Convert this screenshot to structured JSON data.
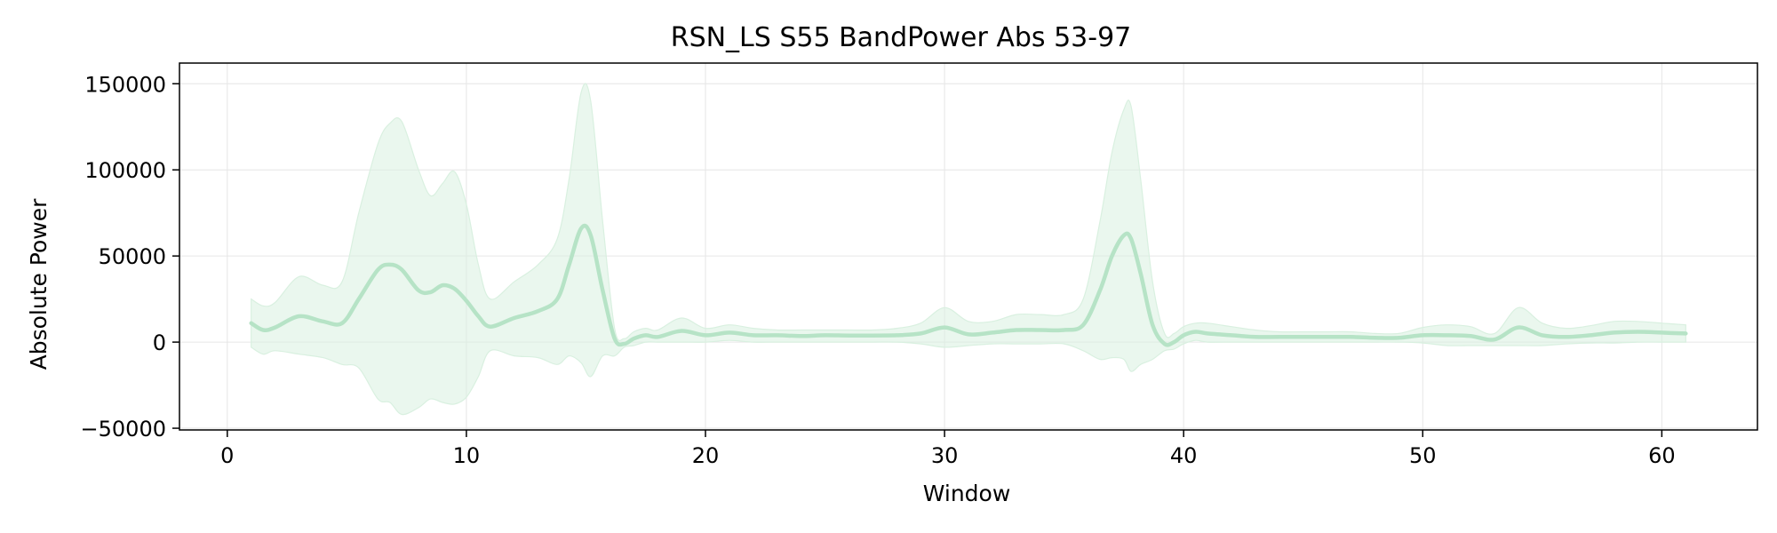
{
  "chart_data": {
    "type": "line",
    "title": "RSN_LS S55 BandPower Abs 53-97",
    "xlabel": "Window",
    "ylabel": "Absolute Power",
    "xlim": [
      -2,
      64
    ],
    "ylim": [
      -51000,
      162000
    ],
    "x_ticks": [
      0,
      10,
      20,
      30,
      40,
      50,
      60
    ],
    "x_tick_labels": [
      "0",
      "10",
      "20",
      "30",
      "40",
      "50",
      "60"
    ],
    "y_ticks": [
      -50000,
      0,
      50000,
      100000,
      150000
    ],
    "y_tick_labels": [
      "−50000",
      "0",
      "50000",
      "100000",
      "150000"
    ],
    "grid": true,
    "legend": "none",
    "colors": {
      "line": "#b6e3c6",
      "band": "#d9f0e0",
      "grid": "#e6e6e6",
      "axis": "#000000"
    },
    "series": [
      {
        "x": [
          1,
          1.5,
          2,
          3,
          4,
          4.8,
          5.5,
          6.3,
          6.8,
          7.3,
          8,
          8.5,
          9,
          9.5,
          10,
          10.5,
          11,
          12,
          13,
          13.8,
          14.3,
          14.8,
          15.2,
          15.7,
          16.2,
          16.6,
          17,
          17.5,
          18,
          19,
          20,
          21,
          22,
          23,
          24,
          25,
          26,
          27,
          28,
          29,
          30,
          31,
          32,
          33,
          34,
          35,
          35.8,
          36.5,
          37,
          37.5,
          37.8,
          38.2,
          38.7,
          39.2,
          39.6,
          40,
          40.5,
          41,
          42,
          43,
          44,
          45,
          46,
          47,
          48,
          49,
          50,
          51,
          52,
          53,
          54,
          55,
          56,
          57,
          58,
          59,
          60,
          61
        ],
        "mean": [
          11000,
          7000,
          8500,
          15000,
          12000,
          11000,
          25000,
          42000,
          45000,
          42000,
          30000,
          29000,
          33000,
          31000,
          24000,
          15000,
          9000,
          14000,
          18000,
          25000,
          45000,
          66000,
          62000,
          30000,
          2000,
          -1000,
          2000,
          4000,
          3000,
          6500,
          4000,
          5500,
          4000,
          4000,
          3500,
          4000,
          3800,
          3800,
          4000,
          5000,
          8500,
          4500,
          5500,
          7000,
          7000,
          7000,
          10000,
          30000,
          50000,
          62000,
          60000,
          40000,
          10000,
          -1000,
          0,
          4000,
          6000,
          5000,
          4000,
          3000,
          3000,
          3000,
          3000,
          3000,
          2500,
          2500,
          4000,
          4000,
          3500,
          1500,
          8500,
          4000,
          3000,
          4000,
          5500,
          6000,
          5500,
          5000
        ],
        "upper": [
          25000,
          21000,
          23000,
          38000,
          33000,
          35000,
          75000,
          115000,
          127000,
          128000,
          100000,
          85000,
          92000,
          99000,
          80000,
          45000,
          25000,
          35000,
          45000,
          60000,
          95000,
          145000,
          140000,
          70000,
          8000,
          2000,
          6000,
          8000,
          7000,
          14000,
          8000,
          10000,
          8000,
          7000,
          7000,
          7000,
          7000,
          7000,
          8000,
          11000,
          20000,
          12000,
          12000,
          16000,
          16000,
          16000,
          25000,
          70000,
          110000,
          135000,
          137000,
          95000,
          35000,
          5000,
          5000,
          9000,
          11000,
          11000,
          9000,
          7000,
          6000,
          6000,
          6000,
          6000,
          5000,
          5000,
          8500,
          10000,
          9000,
          5000,
          20000,
          11000,
          8000,
          9500,
          12000,
          12000,
          11000,
          10000
        ],
        "lower": [
          -3000,
          -7000,
          -5000,
          -7000,
          -9000,
          -13000,
          -15000,
          -33000,
          -35000,
          -42000,
          -38000,
          -33000,
          -35000,
          -36000,
          -32000,
          -20000,
          -5000,
          -8000,
          -9000,
          -13000,
          -8000,
          -12000,
          -20000,
          -8000,
          -8000,
          -3000,
          -2000,
          0,
          0,
          0,
          0,
          1000,
          0,
          0,
          0,
          0,
          0,
          0,
          0,
          -1000,
          -3000,
          -2000,
          -1000,
          -1000,
          -1000,
          -1000,
          -5000,
          -10000,
          -9000,
          -10000,
          -17000,
          -13000,
          -10000,
          -5000,
          -4000,
          -1000,
          1000,
          0,
          0,
          0,
          0,
          0,
          0,
          0,
          0,
          0,
          -500,
          -2000,
          -2000,
          -2000,
          -2000,
          -2000,
          -1000,
          -500,
          -500,
          0,
          0,
          0
        ]
      }
    ]
  }
}
